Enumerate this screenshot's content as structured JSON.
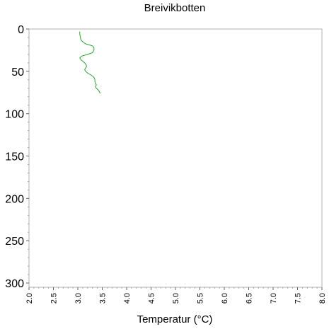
{
  "chart_data": {
    "type": "line",
    "title": "Breivikbotten",
    "xlabel": "Temperatur (°C)",
    "ylabel": "",
    "xlim": [
      2.0,
      8.0
    ],
    "ylim": [
      305,
      0
    ],
    "y_inverted": true,
    "x_ticks": [
      "2.0",
      "2.5",
      "3.0",
      "3.5",
      "4.0",
      "4.5",
      "5.0",
      "5.5",
      "6.0",
      "6.5",
      "7.0",
      "7.5",
      "8.0"
    ],
    "x_tick_values": [
      2.0,
      2.5,
      3.0,
      3.5,
      4.0,
      4.5,
      5.0,
      5.5,
      6.0,
      6.5,
      7.0,
      7.5,
      8.0
    ],
    "y_ticks": [
      "0",
      "50",
      "100",
      "150",
      "200",
      "250",
      "300"
    ],
    "y_tick_values": [
      0,
      50,
      100,
      150,
      200,
      250,
      300
    ],
    "grid": false,
    "series": [
      {
        "color": "#2ca02c",
        "points": [
          [
            3.04,
            3
          ],
          [
            3.04,
            6
          ],
          [
            3.05,
            9
          ],
          [
            3.06,
            12
          ],
          [
            3.08,
            14
          ],
          [
            3.12,
            16
          ],
          [
            3.18,
            18
          ],
          [
            3.25,
            19
          ],
          [
            3.3,
            20
          ],
          [
            3.33,
            22
          ],
          [
            3.33,
            25
          ],
          [
            3.3,
            28
          ],
          [
            3.2,
            30
          ],
          [
            3.08,
            32
          ],
          [
            3.04,
            34
          ],
          [
            3.06,
            36
          ],
          [
            3.1,
            38
          ],
          [
            3.14,
            40
          ],
          [
            3.17,
            42
          ],
          [
            3.18,
            44
          ],
          [
            3.16,
            46
          ],
          [
            3.14,
            48
          ],
          [
            3.16,
            50
          ],
          [
            3.2,
            52
          ],
          [
            3.26,
            54
          ],
          [
            3.31,
            56
          ],
          [
            3.34,
            58
          ],
          [
            3.35,
            60
          ],
          [
            3.35,
            62
          ],
          [
            3.36,
            64
          ],
          [
            3.38,
            66
          ],
          [
            3.36,
            68
          ],
          [
            3.38,
            70
          ],
          [
            3.42,
            72
          ],
          [
            3.44,
            74
          ],
          [
            3.46,
            76
          ]
        ]
      }
    ]
  }
}
